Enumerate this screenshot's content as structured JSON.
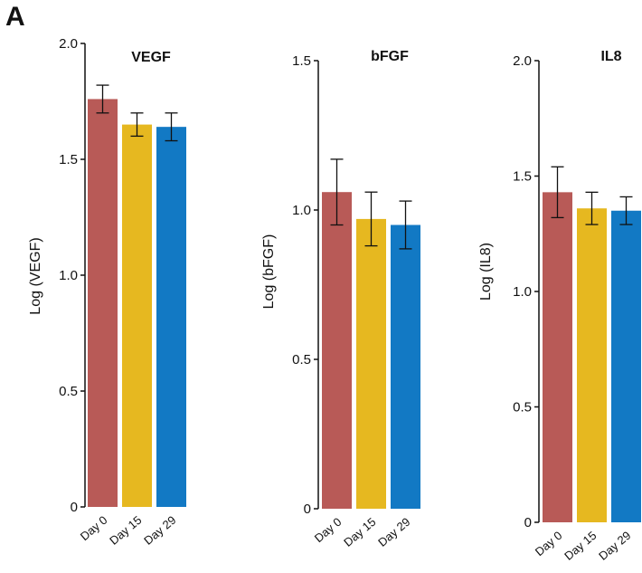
{
  "panel_label": "A",
  "chart_data": [
    {
      "type": "bar",
      "title": "VEGF",
      "ylabel": "Log (VEGF)",
      "xlabel": "",
      "categories": [
        "Day 0",
        "Day 15",
        "Day 29"
      ],
      "values": [
        1.76,
        1.65,
        1.64
      ],
      "error": [
        0.06,
        0.05,
        0.06
      ],
      "ylim": [
        0,
        2.0
      ],
      "yticks": [
        0,
        0.5,
        1.0,
        1.5,
        2.0
      ],
      "ytick_labels": [
        "0",
        "0.5",
        "1.0",
        "1.5",
        "2.0"
      ],
      "colors": [
        "#b85a57",
        "#e6b820",
        "#1279c4"
      ],
      "grid": false
    },
    {
      "type": "bar",
      "title": "bFGF",
      "ylabel": "Log (bFGF)",
      "xlabel": "",
      "categories": [
        "Day 0",
        "Day 15",
        "Day 29"
      ],
      "values": [
        1.06,
        0.97,
        0.95
      ],
      "error": [
        0.11,
        0.09,
        0.08
      ],
      "ylim": [
        0,
        1.5
      ],
      "yticks": [
        0,
        0.5,
        1.0,
        1.5
      ],
      "ytick_labels": [
        "0",
        "0.5",
        "1.0",
        "1.5"
      ],
      "colors": [
        "#b85a57",
        "#e6b820",
        "#1279c4"
      ],
      "grid": false
    },
    {
      "type": "bar",
      "title": "IL8",
      "ylabel": "Log (IL8)",
      "xlabel": "",
      "categories": [
        "Day 0",
        "Day 15",
        "Day 29"
      ],
      "values": [
        1.43,
        1.36,
        1.35
      ],
      "error": [
        0.11,
        0.07,
        0.06
      ],
      "ylim": [
        0,
        2.0
      ],
      "yticks": [
        0,
        0.5,
        1.0,
        1.5,
        2.0
      ],
      "ytick_labels": [
        "0",
        "0.5",
        "1.0",
        "1.5",
        "2.0"
      ],
      "colors": [
        "#b85a57",
        "#e6b820",
        "#1279c4"
      ],
      "grid": false
    }
  ]
}
